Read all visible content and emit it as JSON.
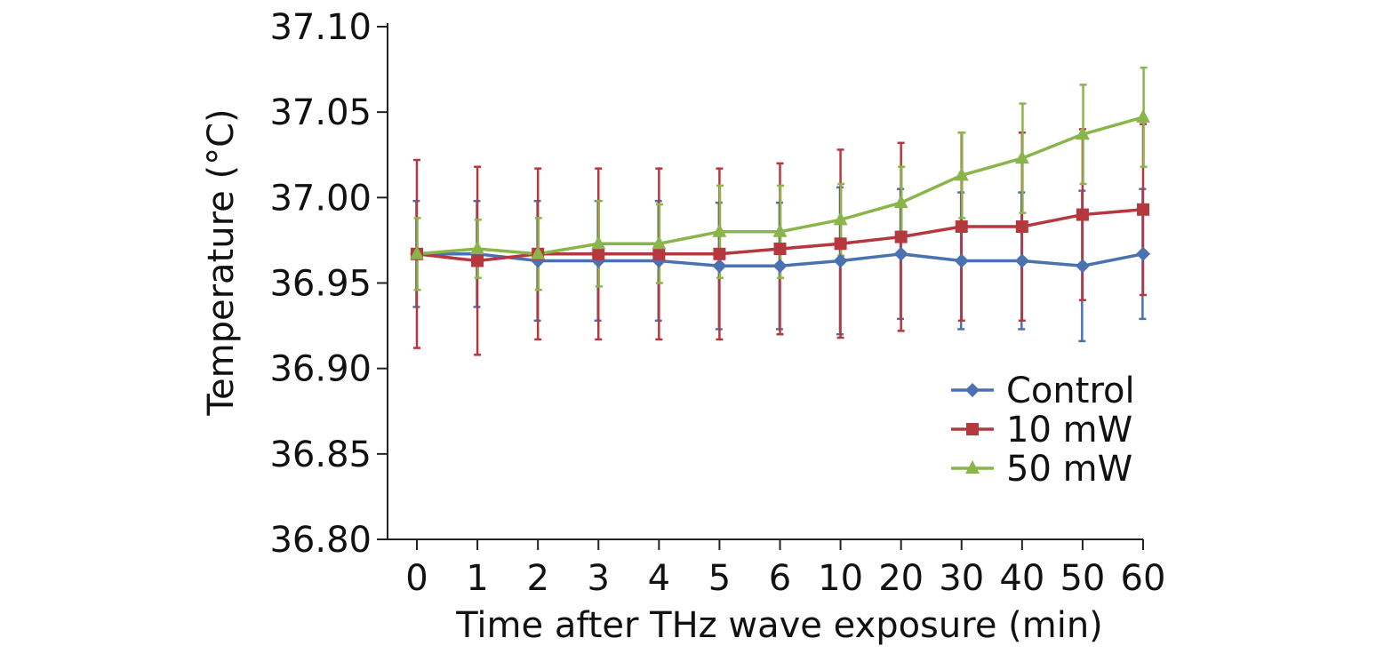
{
  "chart_data": {
    "type": "line",
    "title": "",
    "xlabel": "Time after THz wave exposure (min)",
    "ylabel": "Temperature (°C)",
    "categories": [
      "0",
      "1",
      "2",
      "3",
      "4",
      "5",
      "6",
      "10",
      "20",
      "30",
      "40",
      "50",
      "60"
    ],
    "ylim": [
      36.8,
      37.1
    ],
    "yticks": [
      "36.80",
      "36.85",
      "36.90",
      "36.95",
      "37.00",
      "37.05",
      "37.10"
    ],
    "grid": false,
    "legend_position": "right-center",
    "series": [
      {
        "name": "Control",
        "color": "#4a72b0",
        "marker": "diamond",
        "values": [
          36.967,
          36.967,
          36.963,
          36.963,
          36.963,
          36.96,
          36.96,
          36.963,
          36.967,
          36.963,
          36.963,
          36.96,
          36.967
        ],
        "errors": [
          0.031,
          0.031,
          0.035,
          0.035,
          0.035,
          0.037,
          0.037,
          0.043,
          0.038,
          0.04,
          0.04,
          0.044,
          0.038
        ]
      },
      {
        "name": "10 mW",
        "color": "#b5383f",
        "marker": "square",
        "values": [
          36.967,
          36.963,
          36.967,
          36.967,
          36.967,
          36.967,
          36.97,
          36.973,
          36.977,
          36.983,
          36.983,
          36.99,
          36.993
        ],
        "errors": [
          0.055,
          0.055,
          0.05,
          0.05,
          0.05,
          0.05,
          0.05,
          0.055,
          0.055,
          0.055,
          0.055,
          0.05,
          0.05
        ]
      },
      {
        "name": "50 mW",
        "color": "#8ab54a",
        "marker": "triangle",
        "values": [
          36.967,
          36.97,
          36.967,
          36.973,
          36.973,
          36.98,
          36.98,
          36.987,
          36.997,
          37.013,
          37.023,
          37.037,
          37.047
        ],
        "errors": [
          0.021,
          0.017,
          0.021,
          0.025,
          0.023,
          0.027,
          0.027,
          0.021,
          0.021,
          0.025,
          0.032,
          0.029,
          0.029
        ]
      }
    ]
  }
}
